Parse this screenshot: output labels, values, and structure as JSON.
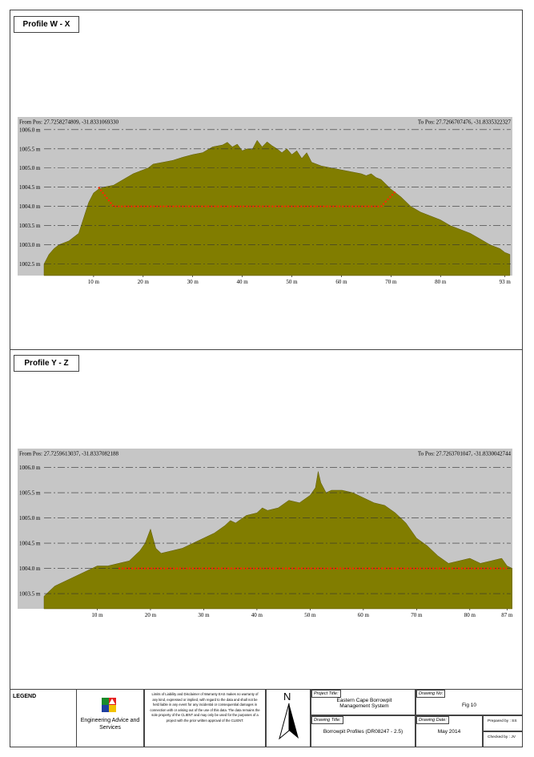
{
  "sections": [
    {
      "label": "Profile W - X"
    },
    {
      "label": "Profile Y - Z"
    }
  ],
  "chart_data": [
    {
      "type": "area",
      "from_pos": "From Pos: 27.7258274809, -31.8331069330",
      "to_pos": "To Pos: 27.7266707476, -31.8335322327",
      "ylim": [
        1002.2,
        1006.1
      ],
      "xlim": [
        0,
        94.5
      ],
      "y_ticks": [
        1006.0,
        1005.5,
        1005.0,
        1004.5,
        1004.0,
        1003.5,
        1003.0,
        1002.5
      ],
      "y_tick_labels": [
        "1006.0 m",
        "1005.5 m",
        "1005.0 m",
        "1004.5 m",
        "1004.0 m",
        "1003.5 m",
        "1003.0 m",
        "1002.5 m"
      ],
      "x_ticks": [
        10,
        20,
        30,
        40,
        50,
        60,
        70,
        80,
        93
      ],
      "x_tick_labels": [
        "10 m",
        "20 m",
        "30 m",
        "40 m",
        "50 m",
        "60 m",
        "70 m",
        "80 m",
        "93 m"
      ],
      "grid": true,
      "series": [
        {
          "x": [
            0,
            1,
            2,
            3,
            5,
            7,
            8,
            9,
            10,
            11,
            12,
            14,
            16,
            18,
            19,
            20,
            21,
            22,
            24,
            26,
            28,
            30,
            32,
            34,
            36,
            37,
            38,
            39,
            40,
            41,
            42,
            43,
            44,
            45,
            46,
            47,
            48,
            49,
            50,
            51,
            52,
            53,
            54,
            56,
            58,
            60,
            62,
            64,
            65,
            66,
            67,
            68,
            70,
            72,
            74,
            76,
            78,
            80,
            82,
            84,
            86,
            88,
            90,
            92,
            93,
            94
          ],
          "y": [
            1002.5,
            1002.75,
            1002.9,
            1003.0,
            1003.1,
            1003.3,
            1003.7,
            1004.1,
            1004.35,
            1004.45,
            1004.5,
            1004.55,
            1004.7,
            1004.85,
            1004.9,
            1004.95,
            1005.0,
            1005.1,
            1005.15,
            1005.2,
            1005.28,
            1005.35,
            1005.4,
            1005.55,
            1005.6,
            1005.67,
            1005.55,
            1005.62,
            1005.45,
            1005.5,
            1005.48,
            1005.72,
            1005.55,
            1005.68,
            1005.58,
            1005.5,
            1005.4,
            1005.5,
            1005.35,
            1005.45,
            1005.25,
            1005.4,
            1005.15,
            1005.05,
            1005.0,
            1004.95,
            1004.9,
            1004.85,
            1004.8,
            1004.85,
            1004.75,
            1004.7,
            1004.45,
            1004.25,
            1004.0,
            1003.85,
            1003.75,
            1003.65,
            1003.5,
            1003.4,
            1003.3,
            1003.15,
            1003.0,
            1002.9,
            1002.8,
            1002.75
          ]
        },
        {
          "x": [
            11,
            14,
            68,
            71
          ],
          "y": [
            1004.5,
            1004.0,
            1004.0,
            1004.4
          ]
        }
      ]
    },
    {
      "type": "area",
      "from_pos": "From Pos: 27.7259613037, -31.8337082188",
      "to_pos": "To Pos: 27.7263701047, -31.8330042744",
      "ylim": [
        1003.2,
        1006.2
      ],
      "xlim": [
        0,
        88
      ],
      "y_ticks": [
        1006.0,
        1005.5,
        1005.0,
        1004.5,
        1004.0,
        1003.5
      ],
      "y_tick_labels": [
        "1006.0 m",
        "1005.5 m",
        "1005.0 m",
        "1004.5 m",
        "1004.0 m",
        "1003.5 m"
      ],
      "x_ticks": [
        10,
        20,
        30,
        40,
        50,
        60,
        70,
        80,
        87
      ],
      "x_tick_labels": [
        "10 m",
        "20 m",
        "30 m",
        "40 m",
        "50 m",
        "60 m",
        "70 m",
        "80 m",
        "87 m"
      ],
      "grid": true,
      "series": [
        {
          "x": [
            0,
            1,
            2,
            4,
            6,
            8,
            10,
            12,
            14,
            16,
            18,
            19,
            20,
            21,
            22,
            24,
            26,
            28,
            30,
            32,
            34,
            35,
            36,
            38,
            40,
            41,
            42,
            44,
            46,
            48,
            50,
            51,
            51.5,
            52,
            53,
            54,
            56,
            58,
            60,
            62,
            64,
            66,
            68,
            70,
            72,
            74,
            76,
            78,
            80,
            82,
            84,
            86,
            87,
            88
          ],
          "y": [
            1003.45,
            1003.55,
            1003.65,
            1003.75,
            1003.85,
            1003.95,
            1004.05,
            1004.05,
            1004.1,
            1004.15,
            1004.35,
            1004.5,
            1004.78,
            1004.4,
            1004.3,
            1004.35,
            1004.4,
            1004.5,
            1004.6,
            1004.7,
            1004.85,
            1004.95,
            1004.9,
            1005.05,
            1005.1,
            1005.2,
            1005.15,
            1005.2,
            1005.35,
            1005.3,
            1005.45,
            1005.6,
            1005.92,
            1005.7,
            1005.5,
            1005.55,
            1005.55,
            1005.5,
            1005.4,
            1005.3,
            1005.25,
            1005.1,
            1004.9,
            1004.6,
            1004.45,
            1004.25,
            1004.1,
            1004.15,
            1004.2,
            1004.1,
            1004.15,
            1004.2,
            1004.05,
            1004.0
          ]
        },
        {
          "x": [
            14,
            87
          ],
          "y": [
            1004.0,
            1004.0
          ]
        }
      ]
    }
  ],
  "title_block": {
    "legend_label": "LEGEND",
    "company_name": "Engineering Advice and Services",
    "disclaimer": "Limits of Liability and Disclaimer of Warranty EAS makes no warranty of any kind, expressed or implied, with regard to the data and shall not be held liable in any event for any incidental or consequential damages in connection with or arising out of the use of this data. The data remains the sole property of the CLIENT and may only be used for the purposes of a project with the prior written approval of the CLIENT.",
    "north_label": "N",
    "project_title_label": "Project Title:",
    "project_title": "Eastern Cape Borrowpit Management System",
    "drawing_title_label": "Drawing Title:",
    "drawing_title": "Borrowpit Profiles (DR08247 - 2.5)",
    "drawing_no_label": "Drawing No:",
    "drawing_no": "Fig 10",
    "drawing_date_label": "Drawing Date:",
    "drawing_date": "May 2014",
    "prepared_by": "Prepared by : SS",
    "checked_by": "Checked by : JV",
    "colors": {
      "terrain": "#817d00",
      "plot_bg": "#c6c6c6",
      "floor_line": "#ff2a00"
    }
  }
}
